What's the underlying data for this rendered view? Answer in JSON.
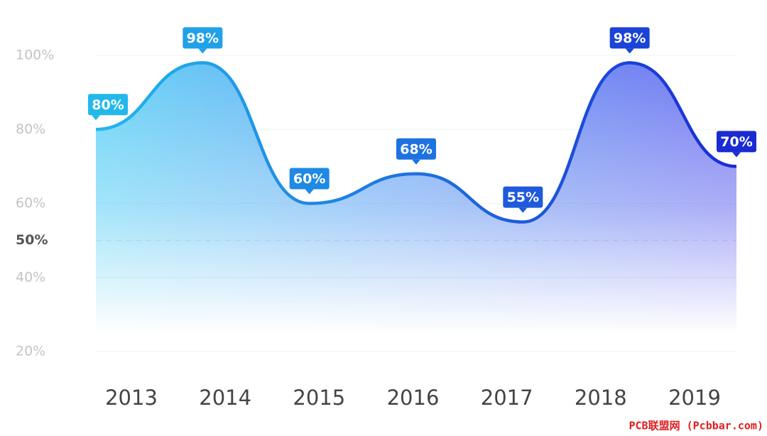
{
  "chart_data": {
    "type": "line",
    "categories": [
      "2013",
      "2014",
      "2015",
      "2016",
      "2017",
      "2018",
      "2019"
    ],
    "values": [
      80,
      98,
      60,
      68,
      55,
      98,
      70
    ],
    "value_labels": [
      "80%",
      "98%",
      "60%",
      "68%",
      "55%",
      "98%",
      "70%"
    ],
    "colors": [
      "#22b8ec",
      "#1a2bd4"
    ],
    "ylim": [
      20,
      100
    ],
    "yticks": [
      {
        "value": 20,
        "label": "20%"
      },
      {
        "value": 40,
        "label": "40%"
      },
      {
        "value": 60,
        "label": "60%"
      },
      {
        "value": 80,
        "label": "80%"
      },
      {
        "value": 100,
        "label": "100%"
      }
    ],
    "reference_line": {
      "value": 50,
      "label": "50%"
    },
    "grid": true,
    "watermark": "PCB联盟网 (Pcbbar.com)"
  }
}
